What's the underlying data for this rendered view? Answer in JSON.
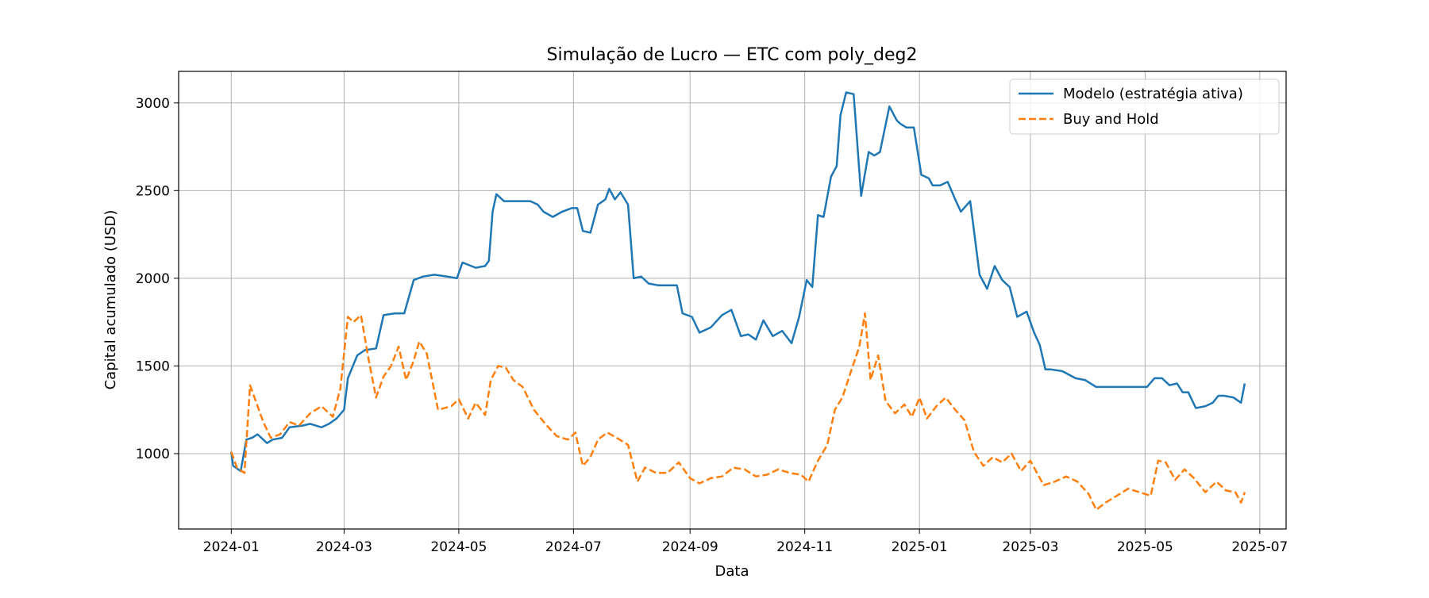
{
  "chart_data": {
    "type": "line",
    "title": "Simulação de Lucro — ETC com poly_deg2",
    "xlabel": "Data",
    "ylabel": "Capital acumulado (USD)",
    "x_ticks": [
      "2024-01",
      "2024-03",
      "2024-05",
      "2024-07",
      "2024-09",
      "2024-11",
      "2025-01",
      "2025-03",
      "2025-05",
      "2025-07"
    ],
    "y_ticks": [
      1000,
      1500,
      2000,
      2500,
      3000
    ],
    "xlim": [
      "2023-12-04",
      "2025-07-15"
    ],
    "ylim": [
      570,
      3180
    ],
    "grid": true,
    "legend_position": "upper right",
    "series": [
      {
        "name": "Modelo (estratégia ativa)",
        "color": "#1f77b4",
        "style": "solid",
        "x": [
          "2024-01-01",
          "2024-01-02",
          "2024-01-06",
          "2024-01-09",
          "2024-01-12",
          "2024-01-15",
          "2024-01-20",
          "2024-01-23",
          "2024-01-28",
          "2024-02-01",
          "2024-02-08",
          "2024-02-12",
          "2024-02-18",
          "2024-02-22",
          "2024-02-26",
          "2024-03-01",
          "2024-03-03",
          "2024-03-08",
          "2024-03-12",
          "2024-03-18",
          "2024-03-22",
          "2024-03-28",
          "2024-04-02",
          "2024-04-07",
          "2024-04-12",
          "2024-04-18",
          "2024-04-25",
          "2024-04-30",
          "2024-05-03",
          "2024-05-10",
          "2024-05-15",
          "2024-05-17",
          "2024-05-19",
          "2024-05-21",
          "2024-05-25",
          "2024-06-01",
          "2024-06-08",
          "2024-06-12",
          "2024-06-15",
          "2024-06-20",
          "2024-06-25",
          "2024-06-30",
          "2024-07-03",
          "2024-07-06",
          "2024-07-10",
          "2024-07-14",
          "2024-07-18",
          "2024-07-20",
          "2024-07-23",
          "2024-07-26",
          "2024-07-30",
          "2024-08-02",
          "2024-08-06",
          "2024-08-10",
          "2024-08-15",
          "2024-08-20",
          "2024-08-25",
          "2024-08-28",
          "2024-09-02",
          "2024-09-06",
          "2024-09-12",
          "2024-09-18",
          "2024-09-23",
          "2024-09-28",
          "2024-10-02",
          "2024-10-06",
          "2024-10-10",
          "2024-10-15",
          "2024-10-20",
          "2024-10-25",
          "2024-10-29",
          "2024-11-02",
          "2024-11-05",
          "2024-11-08",
          "2024-11-11",
          "2024-11-15",
          "2024-11-18",
          "2024-11-20",
          "2024-11-23",
          "2024-11-27",
          "2024-12-01",
          "2024-12-05",
          "2024-12-08",
          "2024-12-11",
          "2024-12-16",
          "2024-12-20",
          "2024-12-22",
          "2024-12-25",
          "2024-12-29",
          "2025-01-02",
          "2025-01-06",
          "2025-01-08",
          "2025-01-12",
          "2025-01-16",
          "2025-01-20",
          "2025-01-23",
          "2025-01-28",
          "2025-02-02",
          "2025-02-06",
          "2025-02-10",
          "2025-02-14",
          "2025-02-18",
          "2025-02-22",
          "2025-02-27",
          "2025-03-03",
          "2025-03-06",
          "2025-03-09",
          "2025-03-12",
          "2025-03-18",
          "2025-03-25",
          "2025-03-30",
          "2025-04-05",
          "2025-04-10",
          "2025-04-18",
          "2025-04-25",
          "2025-05-02",
          "2025-05-06",
          "2025-05-10",
          "2025-05-14",
          "2025-05-18",
          "2025-05-21",
          "2025-05-24",
          "2025-05-28",
          "2025-06-02",
          "2025-06-06",
          "2025-06-09",
          "2025-06-12",
          "2025-06-17",
          "2025-06-21",
          "2025-06-23"
        ],
        "y": [
          1010,
          930,
          900,
          1080,
          1090,
          1110,
          1060,
          1080,
          1090,
          1150,
          1160,
          1170,
          1150,
          1170,
          1200,
          1250,
          1430,
          1560,
          1590,
          1600,
          1790,
          1800,
          1800,
          1990,
          2010,
          2020,
          2010,
          2000,
          2090,
          2060,
          2070,
          2100,
          2380,
          2480,
          2440,
          2440,
          2440,
          2420,
          2380,
          2350,
          2380,
          2400,
          2400,
          2270,
          2260,
          2420,
          2450,
          2510,
          2450,
          2490,
          2420,
          2000,
          2010,
          1970,
          1960,
          1960,
          1960,
          1800,
          1780,
          1690,
          1720,
          1790,
          1820,
          1670,
          1680,
          1650,
          1760,
          1670,
          1700,
          1630,
          1780,
          1990,
          1950,
          2360,
          2350,
          2580,
          2640,
          2930,
          3060,
          3050,
          2470,
          2720,
          2700,
          2720,
          2980,
          2900,
          2880,
          2860,
          2860,
          2590,
          2570,
          2530,
          2530,
          2550,
          2450,
          2380,
          2440,
          2020,
          1940,
          2070,
          1990,
          1950,
          1780,
          1810,
          1690,
          1620,
          1480,
          1480,
          1470,
          1430,
          1420,
          1380,
          1380,
          1380,
          1380,
          1380,
          1430,
          1430,
          1390,
          1400,
          1350,
          1350,
          1260,
          1270,
          1290,
          1330,
          1330,
          1320,
          1290,
          1400
        ],
        "legend_label": "Modelo (estratégia ativa)"
      },
      {
        "name": "Buy and Hold",
        "color": "#ff7f0e",
        "style": "dashed",
        "x": [
          "2024-01-01",
          "2024-01-04",
          "2024-01-08",
          "2024-01-11",
          "2024-01-14",
          "2024-01-18",
          "2024-01-22",
          "2024-01-27",
          "2024-02-01",
          "2024-02-06",
          "2024-02-12",
          "2024-02-18",
          "2024-02-24",
          "2024-02-28",
          "2024-03-03",
          "2024-03-06",
          "2024-03-10",
          "2024-03-14",
          "2024-03-18",
          "2024-03-22",
          "2024-03-26",
          "2024-03-30",
          "2024-04-03",
          "2024-04-07",
          "2024-04-10",
          "2024-04-14",
          "2024-04-20",
          "2024-04-27",
          "2024-05-01",
          "2024-05-06",
          "2024-05-10",
          "2024-05-15",
          "2024-05-18",
          "2024-05-22",
          "2024-05-26",
          "2024-05-30",
          "2024-06-04",
          "2024-06-10",
          "2024-06-16",
          "2024-06-22",
          "2024-06-28",
          "2024-07-02",
          "2024-07-06",
          "2024-07-10",
          "2024-07-14",
          "2024-07-19",
          "2024-07-24",
          "2024-07-30",
          "2024-08-04",
          "2024-08-08",
          "2024-08-14",
          "2024-08-20",
          "2024-08-26",
          "2024-09-01",
          "2024-09-06",
          "2024-09-12",
          "2024-09-18",
          "2024-09-24",
          "2024-09-30",
          "2024-10-06",
          "2024-10-12",
          "2024-10-18",
          "2024-10-24",
          "2024-10-30",
          "2024-11-03",
          "2024-11-08",
          "2024-11-13",
          "2024-11-17",
          "2024-11-21",
          "2024-11-25",
          "2024-11-30",
          "2024-12-03",
          "2024-12-06",
          "2024-12-10",
          "2024-12-14",
          "2024-12-19",
          "2024-12-24",
          "2024-12-28",
          "2025-01-01",
          "2025-01-05",
          "2025-01-10",
          "2025-01-15",
          "2025-01-20",
          "2025-01-25",
          "2025-01-30",
          "2025-02-04",
          "2025-02-09",
          "2025-02-14",
          "2025-02-19",
          "2025-02-24",
          "2025-03-01",
          "2025-03-04",
          "2025-03-08",
          "2025-03-14",
          "2025-03-20",
          "2025-03-26",
          "2025-04-01",
          "2025-04-05",
          "2025-04-10",
          "2025-04-16",
          "2025-04-22",
          "2025-04-28",
          "2025-05-04",
          "2025-05-08",
          "2025-05-12",
          "2025-05-17",
          "2025-05-22",
          "2025-05-27",
          "2025-06-02",
          "2025-06-08",
          "2025-06-13",
          "2025-06-18",
          "2025-06-21",
          "2025-06-23"
        ],
        "y": [
          1010,
          920,
          890,
          1390,
          1300,
          1180,
          1090,
          1110,
          1180,
          1160,
          1230,
          1270,
          1210,
          1370,
          1780,
          1750,
          1790,
          1540,
          1320,
          1440,
          1500,
          1610,
          1420,
          1530,
          1640,
          1570,
          1250,
          1270,
          1310,
          1200,
          1290,
          1220,
          1420,
          1500,
          1490,
          1420,
          1380,
          1250,
          1170,
          1100,
          1080,
          1120,
          930,
          980,
          1080,
          1120,
          1090,
          1050,
          840,
          920,
          890,
          890,
          950,
          860,
          830,
          860,
          870,
          920,
          910,
          870,
          880,
          910,
          890,
          880,
          840,
          960,
          1050,
          1250,
          1320,
          1450,
          1610,
          1800,
          1420,
          1560,
          1300,
          1230,
          1280,
          1210,
          1320,
          1200,
          1270,
          1320,
          1250,
          1190,
          1010,
          930,
          980,
          950,
          1000,
          900,
          960,
          900,
          820,
          840,
          870,
          840,
          770,
          680,
          720,
          760,
          800,
          780,
          760,
          960,
          950,
          850,
          910,
          860,
          780,
          840,
          790,
          780,
          720,
          780
        ]
      }
    ]
  }
}
